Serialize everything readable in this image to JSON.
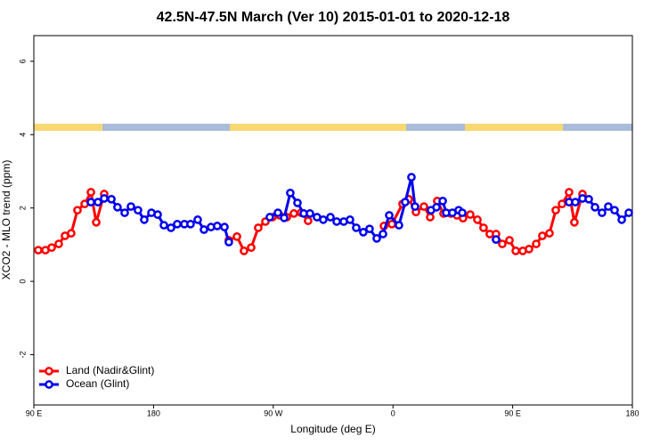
{
  "chart_data": {
    "type": "line",
    "title": "42.5N-47.5N March (Ver 10)   2015-01-01 to 2020-12-18",
    "x_label": "Longitude (deg E)",
    "y_label": "XCO2 - MLO trend (ppm)",
    "xlim": [
      90,
      540
    ],
    "xticks": [
      {
        "value": 90,
        "label": "90 E"
      },
      180,
      {
        "value": 270,
        "label": "90 W"
      },
      {
        "value": 360,
        "label": "0"
      },
      {
        "value": 450,
        "label": "90 E"
      },
      {
        "value": 540,
        "label": "180"
      }
    ],
    "ylim": [
      -3.37,
      6.7
    ],
    "yticks": [
      -2,
      0,
      2,
      4,
      6
    ],
    "legend": "bottomleft",
    "series": [
      {
        "name": "Land (Nadir&Glint)",
        "color": "#ff0000",
        "x": [
          93.3,
          98.7,
          103.4,
          108.7,
          113.4,
          118.1,
          122.8,
          128.2,
          132.9,
          136.9,
          142.9,
          null,
          236.6,
          242.7,
          248.0,
          253.4,
          258.7,
          264.1,
          269.4,
          274.8,
          280.2,
          285.5,
          290.9,
          296.2,
          null,
          353.2,
          359.2,
          367.2,
          371.9,
          377.3,
          383.3,
          388.0,
          393.3,
          398.0,
          403.4,
          408.1,
          412.7,
          418.1,
          423.5,
          428.1,
          432.8,
          437.5,
          442.2,
          447.6,
          452.3,
          457.6,
          462.3,
          467.7,
          472.3,
          477.7,
          482.4,
          487.1,
          492.4,
          496.4,
          502.5
        ],
        "values": [
          0.85,
          0.85,
          0.92,
          1.02,
          1.24,
          1.31,
          1.94,
          2.11,
          2.43,
          1.61,
          2.38,
          null,
          1.12,
          1.22,
          0.83,
          0.92,
          1.46,
          1.63,
          1.75,
          1.8,
          1.75,
          1.85,
          1.87,
          1.65,
          null,
          1.51,
          1.56,
          2.11,
          2.24,
          1.89,
          2.04,
          1.75,
          2.19,
          1.85,
          1.85,
          1.8,
          1.72,
          1.82,
          1.68,
          1.46,
          1.29,
          1.29,
          1.02,
          1.12,
          0.83,
          0.83,
          0.88,
          1.02,
          1.24,
          1.31,
          1.94,
          2.11,
          2.43,
          1.61,
          2.38
        ]
      },
      {
        "name": "Ocean (Glint)",
        "color": "#0000ee",
        "x": [
          132.9,
          138.2,
          142.9,
          148.3,
          152.9,
          158.3,
          163.0,
          168.3,
          173.0,
          178.4,
          183.1,
          187.8,
          193.1,
          197.8,
          203.2,
          207.8,
          213.2,
          217.9,
          223.2,
          227.9,
          233.3,
          236.6,
          null,
          267.4,
          273.5,
          278.2,
          282.8,
          288.2,
          292.9,
          297.6,
          302.9,
          307.6,
          313.0,
          317.7,
          323.0,
          327.7,
          332.4,
          337.7,
          342.4,
          347.8,
          352.5,
          357.2,
          364.5,
          369.2,
          373.9,
          376.6,
          null,
          388.6,
          392.7,
          397.4,
          400.0,
          404.7,
          409.4,
          412.1,
          null,
          437.5,
          null,
          492.4,
          497.1,
          502.5,
          507.2,
          511.9,
          517.2,
          521.9,
          526.6,
          532.0,
          537.3
        ],
        "values": [
          2.16,
          2.16,
          2.26,
          2.24,
          2.02,
          1.87,
          2.04,
          1.94,
          1.68,
          1.87,
          1.82,
          1.53,
          1.46,
          1.56,
          1.56,
          1.56,
          1.68,
          1.41,
          1.48,
          1.51,
          1.48,
          1.07,
          null,
          1.75,
          1.87,
          1.73,
          2.41,
          2.14,
          1.85,
          1.85,
          1.75,
          1.68,
          1.75,
          1.63,
          1.63,
          1.68,
          1.46,
          1.34,
          1.43,
          1.17,
          1.29,
          1.8,
          1.53,
          2.16,
          2.84,
          2.04,
          null,
          1.94,
          2.02,
          2.19,
          1.87,
          1.87,
          1.94,
          1.87,
          null,
          1.14,
          null,
          2.16,
          2.16,
          2.26,
          2.24,
          2.02,
          1.87,
          2.04,
          1.94,
          1.68,
          1.87
        ]
      }
    ]
  }
}
